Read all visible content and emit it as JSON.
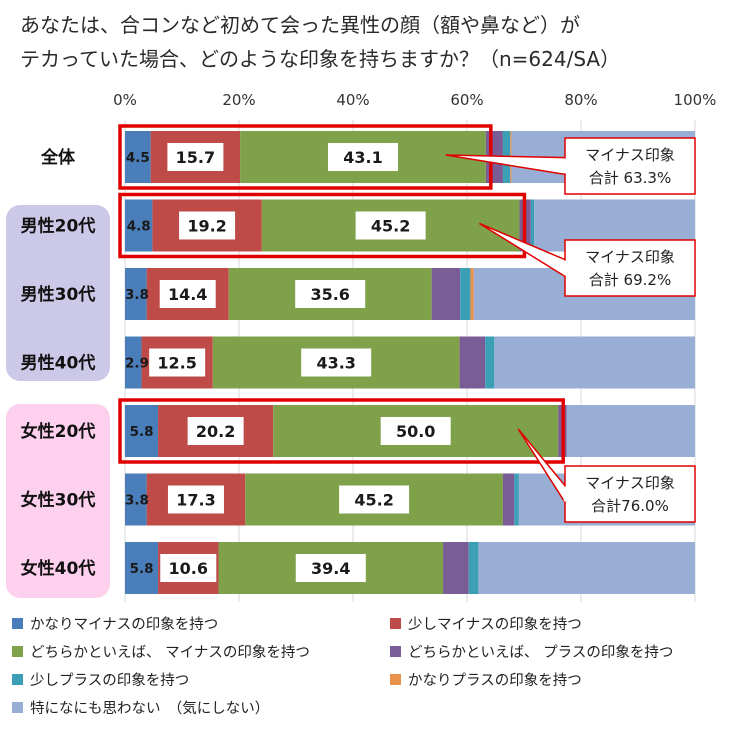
{
  "title": {
    "line1": "あなたは、合コンなど初めて会った異性の顔（額や鼻など）が",
    "line2": "テカっていた場合、どのような印象を持ちますか？（n=624/SA）"
  },
  "colors": {
    "series": [
      "#4a7ebb",
      "#be4b48",
      "#7fa14a",
      "#7a5c96",
      "#3b9fb6",
      "#e8924b",
      "#99aed4"
    ],
    "highlight": "#e00000",
    "male_group_bg": "#ccc9e8",
    "female_group_bg": "#fdd0ee"
  },
  "chart_data": {
    "type": "bar",
    "orientation": "horizontal",
    "stacked": true,
    "percent_stacked": true,
    "xlim": [
      0,
      100
    ],
    "x_ticks": [
      "0%",
      "20%",
      "40%",
      "60%",
      "80%",
      "100%"
    ],
    "categories": [
      "全体",
      "男性20代",
      "男性30代",
      "男性40代",
      "女性20代",
      "女性30代",
      "女性40代"
    ],
    "series": [
      {
        "name": "かなりマイナスの印象を持つ",
        "values": [
          4.5,
          4.8,
          3.8,
          2.9,
          5.8,
          3.8,
          5.8
        ],
        "labels": [
          "4.5",
          "4.8",
          "3.8",
          "2.9",
          "5.8",
          "3.8",
          "5.8"
        ]
      },
      {
        "name": "少しマイナスの印象を持つ",
        "values": [
          15.7,
          19.2,
          14.4,
          12.5,
          20.2,
          17.3,
          10.6
        ],
        "labels": [
          "15.7",
          "19.2",
          "14.4",
          "12.5",
          "20.2",
          "17.3",
          "10.6"
        ]
      },
      {
        "name": "どちらかといえば、 マイナスの印象を持つ",
        "values": [
          43.1,
          45.2,
          35.6,
          43.3,
          50.0,
          45.2,
          39.4
        ],
        "labels": [
          "43.1",
          "45.2",
          "35.6",
          "43.3",
          "50.0",
          "45.2",
          "39.4"
        ]
      },
      {
        "name": "どちらかといえば、 プラスの印象を持つ",
        "values": [
          3.0,
          2.0,
          5.0,
          4.5,
          1.5,
          2.0,
          4.5
        ]
      },
      {
        "name": "少しプラスの印象を持つ",
        "values": [
          1.3,
          0.6,
          1.8,
          1.6,
          0.0,
          0.8,
          1.7
        ]
      },
      {
        "name": "かなりプラスの印象を持つ",
        "values": [
          0.2,
          0.0,
          0.6,
          0.0,
          0.0,
          0.0,
          0.0
        ]
      },
      {
        "name": "特になにも思わない　（気にしない）",
        "values": [
          32.2,
          28.2,
          38.8,
          35.2,
          22.5,
          30.9,
          38.0
        ]
      }
    ],
    "legend_position": "bottom",
    "highlighted_rows": [
      0,
      1,
      4
    ],
    "callouts": [
      {
        "row": 0,
        "line1": "マイナス印象",
        "line2": "合計 63.3%"
      },
      {
        "row": 1,
        "line1": "マイナス印象",
        "line2": "合計 69.2%"
      },
      {
        "row": 4,
        "line1": "マイナス印象",
        "line2": "合計76.0%"
      }
    ]
  }
}
